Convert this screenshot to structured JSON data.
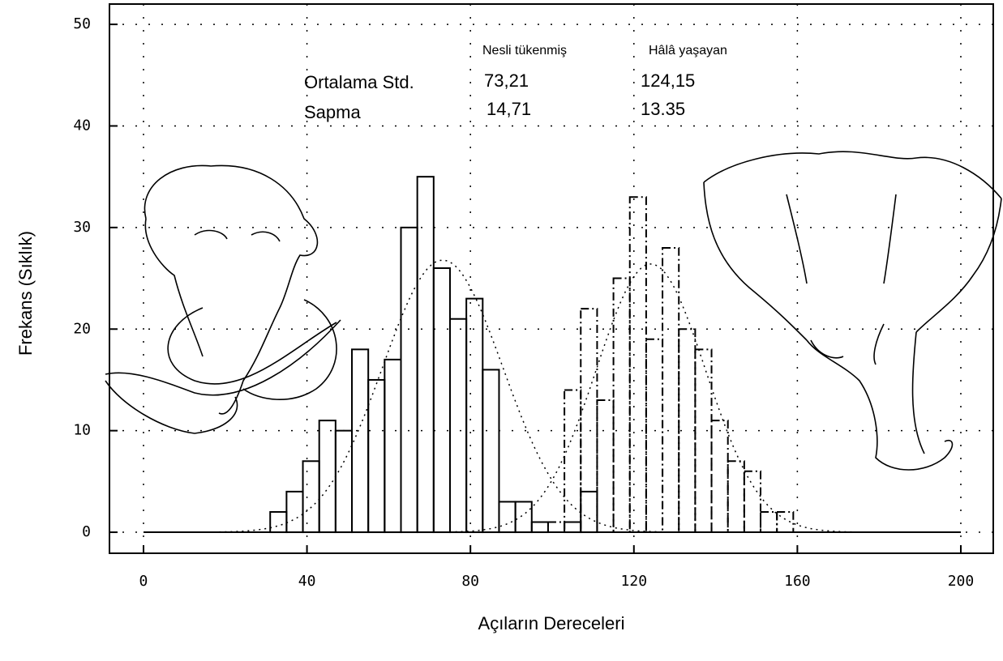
{
  "chart_data": {
    "type": "histogram",
    "xlabel": "Açıların Dereceleri",
    "ylabel": "Frekans (Sıklık)",
    "xlim": [
      -8.33,
      207.94
    ],
    "ylim": [
      -2.07,
      52
    ],
    "xticks": [
      0,
      40,
      80,
      120,
      160,
      200
    ],
    "yticks": [
      0,
      10,
      20,
      30,
      40,
      50
    ],
    "grid": true,
    "series": [
      {
        "name": "Nesli tükenmiş",
        "color": "#000000",
        "dash": "solid",
        "bins": [
          31,
          35,
          39,
          43,
          47,
          51,
          55,
          59,
          63,
          67,
          71,
          75,
          79,
          83,
          87,
          91,
          95,
          99,
          103,
          107,
          111
        ],
        "values": [
          2,
          4,
          7,
          11,
          10,
          18,
          15,
          17,
          30,
          35,
          26,
          21,
          23,
          16,
          3,
          3,
          1,
          0,
          1,
          4
        ]
      },
      {
        "name": "Hâlâ yaşayan",
        "color": "#000000",
        "dash": "dashdot",
        "bins": [
          99,
          103,
          107,
          111,
          115,
          119,
          123,
          127,
          131,
          135,
          139,
          143,
          147,
          151,
          155,
          159
        ],
        "values": [
          1,
          14,
          22,
          13,
          25,
          33,
          19,
          28,
          20,
          18,
          11,
          7,
          6,
          2,
          2
        ]
      }
    ],
    "stats": {
      "row_labels": [
        "Ortalama Std.",
        "Sapma"
      ],
      "values": [
        [
          73.21,
          124.15
        ],
        [
          14.71,
          13.35
        ]
      ],
      "value_labels": [
        [
          "73,21",
          "124,15"
        ],
        [
          "14,71",
          "13.35"
        ]
      ]
    }
  }
}
